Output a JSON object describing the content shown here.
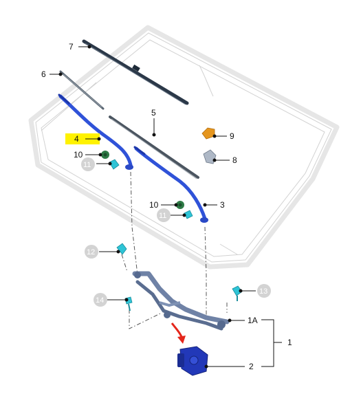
{
  "callouts": {
    "c1": "1",
    "c1A": "1A",
    "c2": "2",
    "c3": "3",
    "c4": "4",
    "c5": "5",
    "c6": "6",
    "c7": "7",
    "c8": "8",
    "c9": "9",
    "c10a": "10",
    "c10b": "10",
    "c11a": "11",
    "c11b": "11",
    "c12": "12",
    "c13": "13",
    "c14": "14"
  },
  "colors": {
    "arm_blue": "#2f52d8",
    "blade_dark": "#2b3848",
    "linkage_steel": "#6f82a6",
    "motor_blue": "#2238b8",
    "highlight": "#fff200",
    "grey_badge": "#d3d3d3",
    "clip_cyan": "#2ec4d6",
    "nozzle_orange": "#e5961f",
    "nut_green": "#2e7a45",
    "arrow_red": "#e4261b"
  },
  "icons": {
    "motion_arrow": "curved-red-arrow"
  }
}
